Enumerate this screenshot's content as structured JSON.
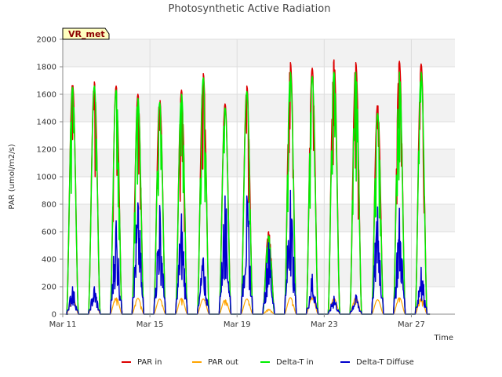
{
  "chart_data": {
    "type": "line",
    "title": "Photosynthetic Active Radiation",
    "xlabel": "Time",
    "ylabel": "PAR (umol/m2/s)",
    "site_label": "VR_met",
    "xlim": [
      0,
      18
    ],
    "ylim": [
      0,
      2000
    ],
    "yticks": [
      0,
      200,
      400,
      600,
      800,
      1000,
      1200,
      1400,
      1600,
      1800,
      2000
    ],
    "xticks": [
      {
        "value": 0,
        "label": "Mar 11"
      },
      {
        "value": 4,
        "label": "Mar 15"
      },
      {
        "value": 8,
        "label": "Mar 19"
      },
      {
        "value": 12,
        "label": "Mar 23"
      },
      {
        "value": 16,
        "label": "Mar 27"
      }
    ],
    "grid": true,
    "legend_position": "bottom",
    "days": [
      "Mar 11",
      "Mar 12",
      "Mar 13",
      "Mar 14",
      "Mar 15",
      "Mar 16",
      "Mar 17",
      "Mar 18",
      "Mar 19",
      "Mar 20",
      "Mar 21",
      "Mar 22",
      "Mar 23",
      "Mar 24",
      "Mar 25",
      "Mar 26",
      "Mar 27"
    ],
    "series": [
      {
        "name": "PAR in",
        "color": "#dd0000",
        "daily_peak": [
          1680,
          1690,
          1660,
          1600,
          1570,
          1630,
          1750,
          1530,
          1660,
          600,
          1830,
          1790,
          1850,
          1830,
          1530,
          1840,
          1820
        ]
      },
      {
        "name": "PAR out",
        "color": "#ffa500",
        "daily_peak": [
          120,
          125,
          120,
          115,
          110,
          115,
          110,
          105,
          110,
          35,
          120,
          120,
          115,
          120,
          105,
          120,
          115
        ]
      },
      {
        "name": "Delta-T in",
        "color": "#00ee00",
        "daily_peak": [
          1650,
          1660,
          1630,
          1570,
          1540,
          1600,
          1720,
          1500,
          1620,
          570,
          1760,
          1730,
          1760,
          1760,
          1460,
          1760,
          1760
        ]
      },
      {
        "name": "Delta-T Diffuse",
        "color": "#0000cc",
        "daily_peak": [
          200,
          200,
          680,
          810,
          790,
          730,
          410,
          860,
          860,
          520,
          900,
          290,
          130,
          140,
          780,
          770,
          340
        ]
      }
    ]
  }
}
